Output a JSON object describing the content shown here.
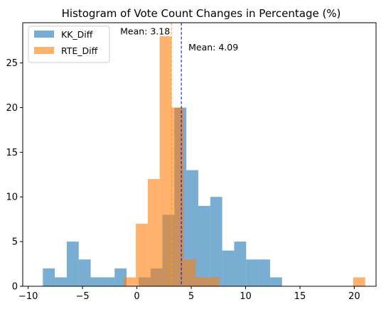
{
  "chart_data": {
    "type": "histogram",
    "title": "Histogram of Vote Count Changes in Percentage (%)",
    "xlabel": "",
    "ylabel": "",
    "xlim": [
      -10.5,
      22
    ],
    "ylim": [
      0,
      29.5
    ],
    "xticks": [
      -10,
      -5,
      0,
      5,
      10,
      15,
      20
    ],
    "yticks": [
      0,
      5,
      10,
      15,
      20,
      25
    ],
    "grid": false,
    "legend_position": "top-left",
    "series": [
      {
        "name": "KK_Diff",
        "color": "#1f77b4",
        "bins": [
          {
            "x0": -8.65,
            "x1": -7.55,
            "count": 2
          },
          {
            "x0": -7.55,
            "x1": -6.45,
            "count": 1
          },
          {
            "x0": -6.45,
            "x1": -5.35,
            "count": 5
          },
          {
            "x0": -5.35,
            "x1": -4.25,
            "count": 3
          },
          {
            "x0": -4.25,
            "x1": -3.15,
            "count": 1
          },
          {
            "x0": -3.15,
            "x1": -2.05,
            "count": 1
          },
          {
            "x0": -2.05,
            "x1": -0.95,
            "count": 2
          },
          {
            "x0": -0.95,
            "x1": 0.15,
            "count": 0
          },
          {
            "x0": 0.15,
            "x1": 1.25,
            "count": 1
          },
          {
            "x0": 1.25,
            "x1": 2.35,
            "count": 2
          },
          {
            "x0": 2.35,
            "x1": 3.45,
            "count": 8
          },
          {
            "x0": 3.45,
            "x1": 4.55,
            "count": 20
          },
          {
            "x0": 4.55,
            "x1": 5.65,
            "count": 13
          },
          {
            "x0": 5.65,
            "x1": 6.75,
            "count": 9
          },
          {
            "x0": 6.75,
            "x1": 7.85,
            "count": 10
          },
          {
            "x0": 7.85,
            "x1": 8.95,
            "count": 4
          },
          {
            "x0": 8.95,
            "x1": 10.05,
            "count": 5
          },
          {
            "x0": 10.05,
            "x1": 11.15,
            "count": 3
          },
          {
            "x0": 11.15,
            "x1": 12.25,
            "count": 3
          },
          {
            "x0": 12.25,
            "x1": 13.35,
            "count": 1
          }
        ],
        "mean": 4.09,
        "mean_label": "Mean: 4.09",
        "mean_line_color": "#0000ff"
      },
      {
        "name": "RTE_Diff",
        "color": "#ff7f0e",
        "bins": [
          {
            "x0": -1.2,
            "x1": -0.1,
            "count": 1
          },
          {
            "x0": -0.1,
            "x1": 1.0,
            "count": 7
          },
          {
            "x0": 1.0,
            "x1": 2.1,
            "count": 12
          },
          {
            "x0": 2.1,
            "x1": 3.2,
            "count": 28
          },
          {
            "x0": 3.2,
            "x1": 4.3,
            "count": 20
          },
          {
            "x0": 4.3,
            "x1": 5.4,
            "count": 3
          },
          {
            "x0": 5.4,
            "x1": 6.5,
            "count": 1
          },
          {
            "x0": 6.5,
            "x1": 7.6,
            "count": 1
          },
          {
            "x0": 19.9,
            "x1": 21.0,
            "count": 1
          }
        ],
        "mean": 3.18,
        "mean_label": "Mean: 3.18",
        "mean_line_color": "#ffa500"
      }
    ]
  }
}
